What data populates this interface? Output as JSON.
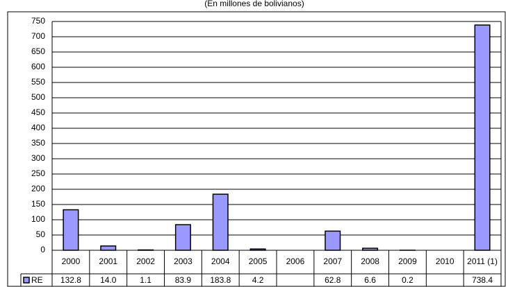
{
  "chart_data": {
    "type": "bar",
    "subtitle": "(En millones de bolivianos)",
    "categories": [
      "2000",
      "2001",
      "2002",
      "2003",
      "2004",
      "2005",
      "2006",
      "2007",
      "2008",
      "2009",
      "2010",
      "2011 (1)"
    ],
    "series": [
      {
        "name": "RE",
        "color": "#9999ff",
        "values": [
          132.8,
          14.0,
          1.1,
          83.9,
          183.8,
          4.2,
          null,
          62.8,
          6.6,
          0.2,
          null,
          738.4
        ],
        "value_labels": [
          "132.8",
          "14.0",
          "1.1",
          "83.9",
          "183.8",
          "4.2",
          null,
          "62.8",
          "6.6",
          "0.2",
          null,
          "738.4"
        ]
      }
    ],
    "ylim": [
      0,
      750
    ],
    "yticks": [
      0,
      50,
      100,
      150,
      200,
      250,
      300,
      350,
      400,
      450,
      500,
      550,
      600,
      650,
      700,
      750
    ],
    "grid": true
  }
}
